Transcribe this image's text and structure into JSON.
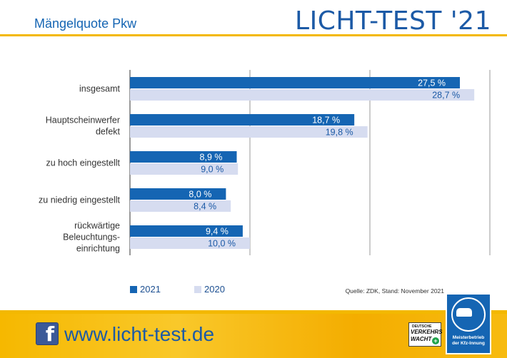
{
  "header": {
    "subtitle": "Mängelquote Pkw",
    "brand": "LICHT-TEST '21"
  },
  "legend": {
    "items": [
      {
        "label": "2021",
        "color": "#1565b3"
      },
      {
        "label": "2020",
        "color": "#d6dcf0"
      }
    ]
  },
  "source": "Quelle: ZDK, Stand: November 2021",
  "footer": {
    "website": "www.licht-test.de",
    "facebook_glyph": "f",
    "verkehrswacht": {
      "line1": "DEUTSCHE",
      "line2": "VERKEHRS",
      "line3": "WACHT"
    },
    "badge": {
      "line1": "Meisterbetrieb",
      "line2": "der Kfz-Innung"
    }
  },
  "colors": {
    "accent_blue": "#1565b3",
    "light_blue": "#d6dcf0",
    "yellow": "#f3b800"
  },
  "chart_data": {
    "type": "bar",
    "orientation": "horizontal",
    "categories": [
      [
        "insgesamt"
      ],
      [
        "Hauptscheinwerfer",
        "defekt"
      ],
      [
        "zu hoch eingestellt"
      ],
      [
        "zu niedrig eingestellt"
      ],
      [
        "rückwärtige",
        "Beleuchtungs-",
        "einrichtung"
      ]
    ],
    "series": [
      {
        "name": "2021",
        "values": [
          27.5,
          18.7,
          8.9,
          8.0,
          9.4
        ],
        "labels": [
          "27,5 %",
          "18,7 %",
          "8,9 %",
          "8,0 %",
          "9,4 %"
        ],
        "color": "#1565b3"
      },
      {
        "name": "2020",
        "values": [
          28.7,
          19.8,
          9.0,
          8.4,
          10.0
        ],
        "labels": [
          "28,7 %",
          "19,8 %",
          "9,0 %",
          "8,4 %",
          "10,0 %"
        ],
        "color": "#d6dcf0"
      }
    ],
    "xlim": [
      0,
      30
    ],
    "grid": true,
    "legend_position": "bottom-left"
  }
}
